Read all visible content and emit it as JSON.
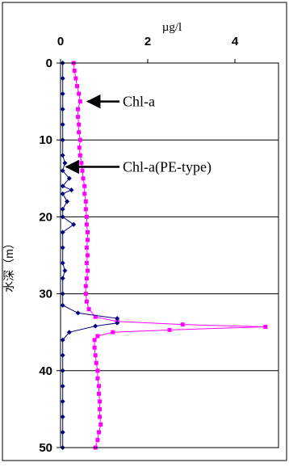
{
  "chart_data": {
    "type": "scatter",
    "title": "",
    "xlabel": "µg/l",
    "ylabel": "水深（m）",
    "x_axis_position": "top",
    "y_inverted": true,
    "xlim": [
      0,
      5
    ],
    "ylim": [
      0,
      50
    ],
    "x_ticks": [
      0,
      2,
      4
    ],
    "y_ticks": [
      0,
      10,
      20,
      30,
      40,
      50
    ],
    "grid": "horizontal",
    "legend": "none",
    "annotations": [
      {
        "text": "Chl-a",
        "arrow_to": [
          0.55,
          5
        ]
      },
      {
        "text": "Chl-a(PE-type)",
        "arrow_to": [
          0.06,
          13.5
        ]
      }
    ],
    "series": [
      {
        "name": "Chl-a",
        "color": "#ff00ff",
        "marker": "square",
        "points": [
          [
            0.3,
            0
          ],
          [
            0.32,
            1
          ],
          [
            0.35,
            2
          ],
          [
            0.38,
            3
          ],
          [
            0.42,
            4
          ],
          [
            0.45,
            5
          ],
          [
            0.4,
            6
          ],
          [
            0.4,
            7
          ],
          [
            0.42,
            8
          ],
          [
            0.42,
            9
          ],
          [
            0.45,
            10
          ],
          [
            0.43,
            11
          ],
          [
            0.45,
            12
          ],
          [
            0.48,
            13
          ],
          [
            0.5,
            14
          ],
          [
            0.52,
            15
          ],
          [
            0.55,
            16
          ],
          [
            0.55,
            17
          ],
          [
            0.58,
            18
          ],
          [
            0.58,
            19
          ],
          [
            0.6,
            20
          ],
          [
            0.6,
            21
          ],
          [
            0.62,
            22
          ],
          [
            0.62,
            23
          ],
          [
            0.6,
            24
          ],
          [
            0.62,
            25
          ],
          [
            0.6,
            26
          ],
          [
            0.62,
            27
          ],
          [
            0.6,
            28
          ],
          [
            0.58,
            29
          ],
          [
            0.58,
            30
          ],
          [
            0.6,
            31
          ],
          [
            0.65,
            32
          ],
          [
            0.8,
            33
          ],
          [
            1.3,
            33.6
          ],
          [
            2.8,
            34.0
          ],
          [
            4.7,
            34.3
          ],
          [
            2.5,
            34.7
          ],
          [
            1.2,
            35.0
          ],
          [
            0.85,
            35.5
          ],
          [
            0.78,
            36
          ],
          [
            0.78,
            37
          ],
          [
            0.8,
            38
          ],
          [
            0.82,
            39
          ],
          [
            0.85,
            40
          ],
          [
            0.85,
            41
          ],
          [
            0.88,
            42
          ],
          [
            0.88,
            43
          ],
          [
            0.9,
            44
          ],
          [
            0.9,
            45
          ],
          [
            0.9,
            46
          ],
          [
            0.92,
            47
          ],
          [
            0.88,
            48
          ],
          [
            0.85,
            49
          ],
          [
            0.8,
            50
          ]
        ]
      },
      {
        "name": "Chl-a(PE-type)",
        "color": "#000080",
        "marker": "diamond",
        "points": [
          [
            0.05,
            0
          ],
          [
            0.05,
            2
          ],
          [
            0.05,
            4
          ],
          [
            0.05,
            6
          ],
          [
            0.05,
            8
          ],
          [
            0.05,
            10
          ],
          [
            0.05,
            12
          ],
          [
            0.1,
            13
          ],
          [
            0.05,
            14
          ],
          [
            0.2,
            15
          ],
          [
            0.05,
            16
          ],
          [
            0.25,
            16.5
          ],
          [
            0.05,
            17
          ],
          [
            0.15,
            18
          ],
          [
            0.05,
            19
          ],
          [
            0.05,
            20
          ],
          [
            0.3,
            21
          ],
          [
            0.05,
            22
          ],
          [
            0.05,
            24
          ],
          [
            0.05,
            26
          ],
          [
            0.1,
            27
          ],
          [
            0.05,
            28
          ],
          [
            0.05,
            30
          ],
          [
            0.05,
            31.5
          ],
          [
            0.4,
            32.5
          ],
          [
            1.3,
            33.2
          ],
          [
            1.3,
            33.8
          ],
          [
            0.8,
            34.2
          ],
          [
            0.2,
            35.0
          ],
          [
            0.05,
            36
          ],
          [
            0.05,
            38
          ],
          [
            0.05,
            40
          ],
          [
            0.05,
            42
          ],
          [
            0.05,
            44
          ],
          [
            0.05,
            46
          ],
          [
            0.05,
            48
          ],
          [
            0.05,
            50
          ]
        ]
      }
    ]
  }
}
